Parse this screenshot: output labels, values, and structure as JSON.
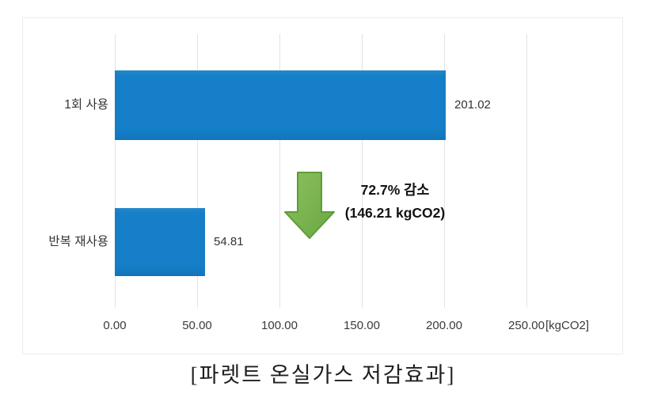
{
  "figure": {
    "caption": "[파렛트 온실가스 저감효과]"
  },
  "chart_data": {
    "type": "bar",
    "orientation": "horizontal",
    "title": "",
    "categories": [
      "1회 사용",
      "반복 재사용"
    ],
    "values": [
      201.02,
      54.81
    ],
    "value_labels": [
      "201.02",
      "54.81"
    ],
    "x_tick_labels": [
      "0.00",
      "50.00",
      "100.00",
      "150.00",
      "200.00",
      "250.00"
    ],
    "x_tick_values": [
      0,
      50,
      100,
      150,
      200,
      250
    ],
    "xlim": [
      0,
      250
    ],
    "unit_label": "[kgCO2]",
    "grid": true,
    "legend": "none",
    "bar_color": "#1580c9",
    "annotation": {
      "line1": "72.7% 감소",
      "line2": "(146.21 kgCO2)",
      "arrow_direction": "down",
      "arrow_fill_light": "#8dc15d",
      "arrow_fill_dark": "#69a743",
      "arrow_stroke": "#5c9c38"
    }
  }
}
